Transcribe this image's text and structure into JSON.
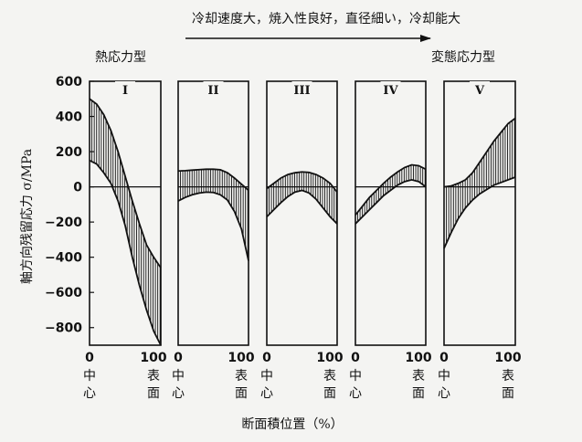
{
  "header": {
    "trend_text": "冷却速度大，焼入性良好，直径細い，冷却能大",
    "left_label": "熱応力型",
    "right_label": "変態応力型"
  },
  "axis": {
    "ylabel": "軸方向残留応力 σ/MPa",
    "xlabel": "断面積位置（%）",
    "center_label": [
      "中",
      "心"
    ],
    "surface_label": [
      "表",
      "面"
    ]
  },
  "chart_data": {
    "type": "area",
    "title": "",
    "xlabel": "断面積位置（%）",
    "ylabel": "軸方向残留応力 σ/MPa",
    "xlim": [
      0,
      100
    ],
    "ylim": [
      -900,
      600
    ],
    "yticks": [
      600,
      400,
      200,
      0,
      -200,
      -400,
      -600,
      -800
    ],
    "ytick_labels": [
      "600",
      "400",
      "200",
      "0",
      "−200",
      "−400",
      "−600",
      "−800"
    ],
    "xticks": [
      0,
      100
    ],
    "xtick_labels": [
      "0",
      "100"
    ],
    "grid": false,
    "panels": [
      {
        "label": "I",
        "upper": {
          "x": [
            0,
            10,
            20,
            30,
            40,
            50,
            60,
            70,
            80,
            90,
            100
          ],
          "y": [
            500,
            470,
            410,
            320,
            200,
            60,
            -80,
            -210,
            -330,
            -400,
            -460
          ]
        },
        "lower": {
          "x": [
            0,
            10,
            20,
            30,
            40,
            50,
            60,
            70,
            80,
            90,
            100
          ],
          "y": [
            150,
            130,
            80,
            20,
            -80,
            -220,
            -400,
            -560,
            -700,
            -820,
            -900
          ]
        }
      },
      {
        "label": "II",
        "upper": {
          "x": [
            0,
            10,
            20,
            30,
            40,
            50,
            60,
            70,
            80,
            90,
            100
          ],
          "y": [
            90,
            92,
            95,
            98,
            100,
            100,
            97,
            80,
            50,
            15,
            -20
          ]
        },
        "lower": {
          "x": [
            0,
            10,
            20,
            30,
            40,
            50,
            60,
            70,
            80,
            90,
            100
          ],
          "y": [
            -80,
            -60,
            -45,
            -35,
            -30,
            -32,
            -45,
            -75,
            -140,
            -240,
            -420
          ]
        }
      },
      {
        "label": "III",
        "upper": {
          "x": [
            0,
            10,
            20,
            30,
            40,
            50,
            60,
            70,
            80,
            90,
            100
          ],
          "y": [
            -10,
            20,
            50,
            70,
            80,
            85,
            82,
            70,
            50,
            20,
            -30
          ]
        },
        "lower": {
          "x": [
            0,
            10,
            20,
            30,
            40,
            50,
            60,
            70,
            80,
            90,
            100
          ],
          "y": [
            -170,
            -130,
            -90,
            -55,
            -30,
            -20,
            -35,
            -70,
            -120,
            -170,
            -210
          ]
        }
      },
      {
        "label": "IV",
        "upper": {
          "x": [
            0,
            10,
            20,
            30,
            40,
            50,
            60,
            70,
            80,
            90,
            100
          ],
          "y": [
            -160,
            -110,
            -60,
            -20,
            20,
            55,
            85,
            110,
            125,
            120,
            100
          ]
        },
        "lower": {
          "x": [
            0,
            10,
            20,
            30,
            40,
            50,
            60,
            70,
            80,
            90,
            100
          ],
          "y": [
            -210,
            -170,
            -130,
            -90,
            -50,
            -20,
            10,
            30,
            40,
            30,
            0
          ]
        }
      },
      {
        "label": "V",
        "upper": {
          "x": [
            0,
            10,
            20,
            30,
            40,
            50,
            60,
            70,
            80,
            90,
            100
          ],
          "y": [
            0,
            5,
            20,
            40,
            80,
            140,
            200,
            260,
            310,
            360,
            390
          ]
        },
        "lower": {
          "x": [
            0,
            10,
            20,
            30,
            40,
            50,
            60,
            70,
            80,
            90,
            100
          ],
          "y": [
            -350,
            -260,
            -180,
            -120,
            -75,
            -40,
            -15,
            10,
            25,
            40,
            55
          ]
        }
      }
    ]
  }
}
